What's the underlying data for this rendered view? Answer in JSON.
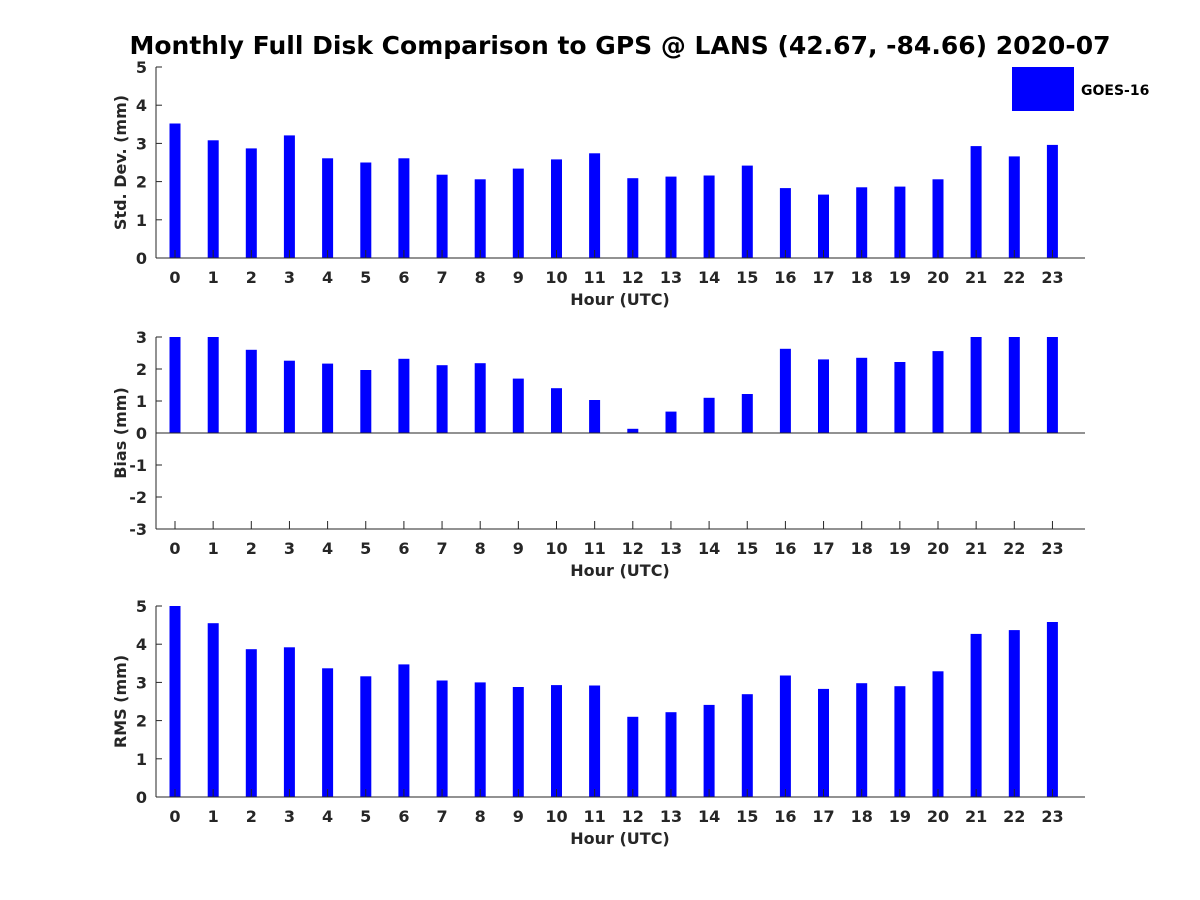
{
  "title": "Monthly Full Disk Comparison to GPS @ LANS (42.67, -84.66) 2020-07",
  "legend": {
    "label": "GOES-16",
    "color": "#0000ff",
    "placement": "top-right"
  },
  "bar_color": "#0000ff",
  "chart_data": [
    {
      "type": "bar",
      "title": "Monthly Full Disk Comparison to GPS @ LANS (42.67, -84.66) 2020-07",
      "xlabel": "Hour (UTC)",
      "ylabel": "Std. Dev. (mm)",
      "ylim": [
        0,
        5
      ],
      "yticks": [
        "0",
        "1",
        "2",
        "3",
        "4",
        "5"
      ],
      "categories": [
        "0",
        "1",
        "2",
        "3",
        "4",
        "5",
        "6",
        "7",
        "8",
        "9",
        "10",
        "11",
        "12",
        "13",
        "14",
        "15",
        "16",
        "17",
        "18",
        "19",
        "20",
        "21",
        "22",
        "23"
      ],
      "series": [
        {
          "name": "GOES-16",
          "values": [
            3.52,
            3.08,
            2.87,
            3.21,
            2.61,
            2.5,
            2.61,
            2.18,
            2.06,
            2.34,
            2.58,
            2.74,
            2.09,
            2.13,
            2.16,
            2.42,
            1.83,
            1.66,
            1.85,
            1.87,
            2.06,
            2.93,
            2.66,
            2.96
          ]
        }
      ],
      "grid": false
    },
    {
      "type": "bar",
      "xlabel": "Hour (UTC)",
      "ylabel": "Bias (mm)",
      "ylim": [
        -3,
        3
      ],
      "yticks": [
        "-3",
        "-2",
        "-1",
        "0",
        "1",
        "2",
        "3"
      ],
      "categories": [
        "0",
        "1",
        "2",
        "3",
        "4",
        "5",
        "6",
        "7",
        "8",
        "9",
        "10",
        "11",
        "12",
        "13",
        "14",
        "15",
        "16",
        "17",
        "18",
        "19",
        "20",
        "21",
        "22",
        "23"
      ],
      "series": [
        {
          "name": "GOES-16",
          "values": [
            3.0,
            3.0,
            2.6,
            2.26,
            2.17,
            1.97,
            2.32,
            2.12,
            2.18,
            1.7,
            1.4,
            1.03,
            0.13,
            0.67,
            1.1,
            1.22,
            2.63,
            2.3,
            2.35,
            2.22,
            2.56,
            3.0,
            3.0,
            3.0
          ]
        }
      ],
      "grid": false
    },
    {
      "type": "bar",
      "xlabel": "Hour (UTC)",
      "ylabel": "RMS (mm)",
      "ylim": [
        0,
        5
      ],
      "yticks": [
        "0",
        "1",
        "2",
        "3",
        "4",
        "5"
      ],
      "categories": [
        "0",
        "1",
        "2",
        "3",
        "4",
        "5",
        "6",
        "7",
        "8",
        "9",
        "10",
        "11",
        "12",
        "13",
        "14",
        "15",
        "16",
        "17",
        "18",
        "19",
        "20",
        "21",
        "22",
        "23"
      ],
      "series": [
        {
          "name": "GOES-16",
          "values": [
            5.0,
            4.55,
            3.87,
            3.92,
            3.37,
            3.16,
            3.47,
            3.05,
            3.0,
            2.88,
            2.93,
            2.92,
            2.1,
            2.22,
            2.41,
            2.69,
            3.18,
            2.83,
            2.98,
            2.9,
            3.29,
            4.27,
            4.37,
            4.58
          ]
        }
      ],
      "grid": false
    }
  ]
}
